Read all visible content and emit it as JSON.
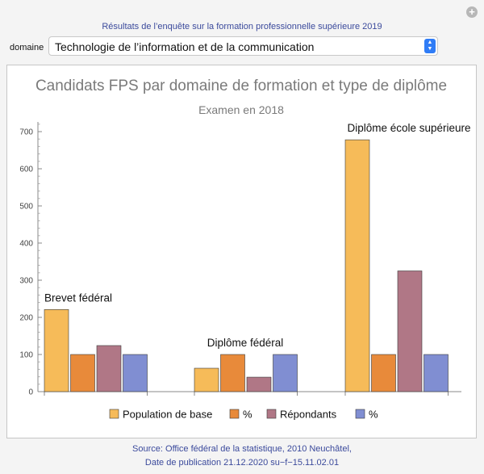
{
  "header": {
    "title": "Résultats de l’enquête sur la formation professionnelle supérieure 2019"
  },
  "domain": {
    "label": "domaine",
    "value": "Technologie de l’information et de la communication"
  },
  "chart_data": {
    "type": "bar",
    "title": "Candidats FPS par domaine de formation et type de diplôme",
    "subtitle": "Examen en 2018",
    "categories": [
      "Brevet fédéral",
      "Diplôme fédéral",
      "Diplôme école supérieure"
    ],
    "series": [
      {
        "name": "Population de base",
        "color": "#f6bb59",
        "values": [
          221,
          63,
          678
        ]
      },
      {
        "name": "%",
        "color": "#e88a3a",
        "values": [
          100,
          100,
          100
        ]
      },
      {
        "name": "Répondants",
        "color": "#b07786",
        "values": [
          124,
          39,
          325
        ]
      },
      {
        "name": "%",
        "color": "#808ed2",
        "values": [
          100,
          100,
          100
        ]
      }
    ],
    "ylim": [
      0,
      720
    ],
    "yticks": [
      0,
      100,
      200,
      300,
      400,
      500,
      600,
      700
    ],
    "grid": false,
    "legend": "bottom"
  },
  "footer": {
    "line1": "Source: Office fédéral de la statistique, 2010 Neuchâtel,",
    "line2": "Date de publication 21.12.2020 su−f−15.11.02.01"
  }
}
